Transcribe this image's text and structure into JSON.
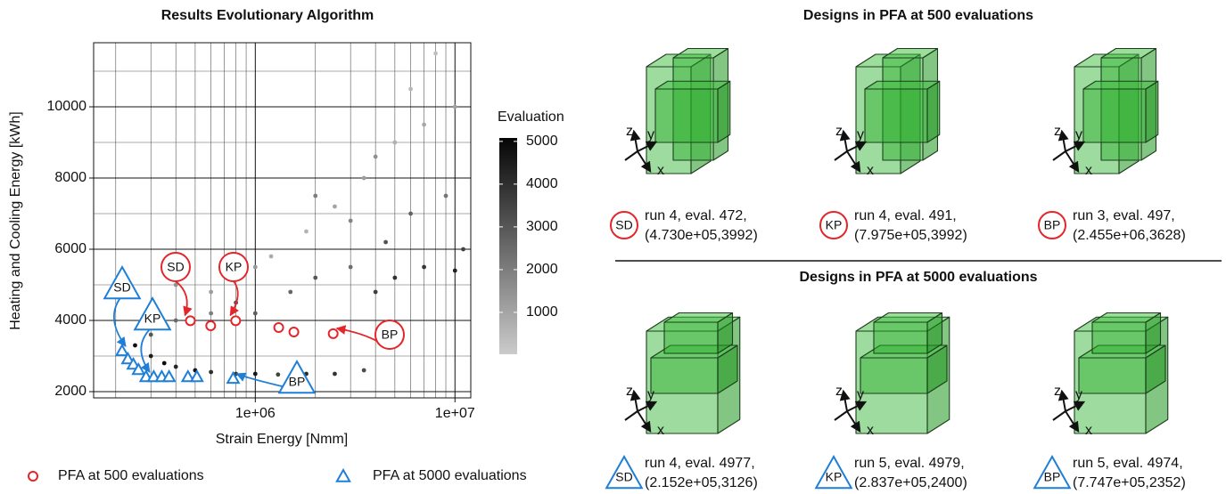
{
  "chart_data": {
    "type": "scatter",
    "title": "Results Evolutionary Algorithm",
    "x_label": "Strain Energy [Nmm]",
    "y_label": "Heating and Cooling Energy [kWh]",
    "x_scale": "log",
    "xlim": [
      155000,
      12000000
    ],
    "ylim": [
      1825,
      11800
    ],
    "xticks": [
      {
        "value": 1000000,
        "label": "1e+06"
      },
      {
        "value": 10000000,
        "label": "1e+07"
      }
    ],
    "xminor": [
      200000,
      300000,
      400000,
      500000,
      600000,
      700000,
      800000,
      900000,
      2000000,
      3000000,
      4000000,
      5000000,
      6000000,
      7000000,
      8000000,
      9000000
    ],
    "yticks": [
      2000,
      4000,
      6000,
      8000,
      10000
    ],
    "yminor": [
      3000,
      5000,
      7000,
      9000,
      11000
    ],
    "grid": true,
    "cloud": {
      "x": [
        250000,
        300000,
        350000,
        400000,
        500000,
        600000,
        800000,
        1000000,
        1300000,
        1800000,
        2500000,
        3500000,
        300000,
        400000,
        600000,
        800000,
        1000000,
        1500000,
        2000000,
        3000000,
        4000000,
        5000000,
        7000000,
        10000000,
        11000000,
        1200000,
        1800000,
        2500000,
        3500000,
        5000000,
        6000000,
        8000000,
        7000000,
        4000000,
        10000000,
        2000000,
        3000000,
        9000000,
        6000000,
        4500000,
        400000,
        600000,
        1000000
      ],
      "y": [
        3300,
        3000,
        2800,
        2700,
        2600,
        2550,
        2500,
        2500,
        2480,
        2500,
        2500,
        2600,
        3600,
        4000,
        4200,
        4500,
        4200,
        4800,
        5200,
        5500,
        4800,
        5200,
        5500,
        5400,
        6000,
        5800,
        6500,
        7200,
        8000,
        9000,
        10500,
        11500,
        9500,
        8600,
        10000,
        7500,
        6800,
        7500,
        7000,
        6200,
        5000,
        4800,
        5500
      ],
      "evaluation": [
        4800,
        4500,
        4900,
        4200,
        4700,
        4000,
        3800,
        4600,
        3500,
        4100,
        3900,
        3300,
        3000,
        2500,
        2000,
        3200,
        2800,
        2600,
        3000,
        2400,
        3600,
        4000,
        3800,
        4400,
        3500,
        800,
        600,
        1000,
        1200,
        700,
        500,
        300,
        900,
        1500,
        1100,
        2000,
        1800,
        2200,
        2700,
        3100,
        1500,
        1200,
        1300
      ]
    },
    "colorbar": {
      "title": "Evaluation",
      "clim": [
        20,
        5080
      ],
      "ticks": [
        1000,
        2000,
        3000,
        4000,
        5000
      ],
      "colormap": [
        "#cbcbcb",
        "#050505"
      ]
    },
    "series": [
      {
        "name": "PFA at 500 evaluations",
        "color": "#e3262a",
        "marker": "circle",
        "x": [
          473000,
          598000,
          797500,
          1310000,
          1560000,
          2455000
        ],
        "values": [
          3992,
          3850,
          3992,
          3800,
          3675,
          3628
        ],
        "annotations": [
          "SD",
          "KP",
          "BP"
        ]
      },
      {
        "name": "PFA at 5000 evaluations",
        "color": "#1f7fd6",
        "marker": "triangle",
        "x": [
          215200,
          230000,
          245000,
          260000,
          283700,
          310000,
          340000,
          370000,
          460000,
          510000,
          774700
        ],
        "values": [
          3126,
          2900,
          2750,
          2600,
          2400,
          2400,
          2400,
          2400,
          2400,
          2400,
          2352
        ],
        "annotations": [
          "SD",
          "KP",
          "BP"
        ]
      }
    ]
  },
  "designs": {
    "axis_labels": [
      "z",
      "y",
      "x"
    ],
    "groups": [
      {
        "title": "Designs in PFA at 500 evaluations",
        "items": [
          {
            "marker": "SD",
            "lines": [
              "run 4, eval. 472,",
              "(4.730e+05,3992)"
            ]
          },
          {
            "marker": "KP",
            "lines": [
              "run 4, eval. 491,",
              "(7.975e+05,3992)"
            ]
          },
          {
            "marker": "BP",
            "lines": [
              "run 3, eval. 497,",
              "(2.455e+06,3628)"
            ]
          }
        ]
      },
      {
        "title": "Designs in PFA at 5000 evaluations",
        "items": [
          {
            "marker": "SD",
            "lines": [
              "run 4, eval. 4977,",
              "(2.152e+05,3126)"
            ]
          },
          {
            "marker": "KP",
            "lines": [
              "run 5, eval. 4979,",
              "(2.837e+05,2400)"
            ]
          },
          {
            "marker": "BP",
            "lines": [
              "run 5, eval. 4974,",
              "(7.747e+05,2352)"
            ]
          }
        ]
      }
    ]
  }
}
